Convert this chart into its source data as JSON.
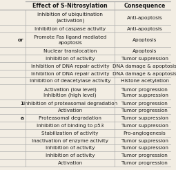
{
  "header": [
    "Effect of S-Nitrosylation",
    "Consequence"
  ],
  "rows": [
    [
      "Inhibition of ubiquitination\n(activation)",
      "Anti-apoptosis"
    ],
    [
      "Inhibition of caspase activity",
      "Anti-apoptosis"
    ],
    [
      "Promote Fas ligand mediated\napoptosis",
      "Apoptosis"
    ],
    [
      "Nuclear translocation",
      "Apoptosis"
    ],
    [
      "Inhibition of activity",
      "Tumor suppression"
    ],
    [
      "Inhibition of DNA repair activity",
      "DNA damage & apoptosis"
    ],
    [
      "Inhibition of DNA repair activity",
      "DNA damage & apoptosis"
    ],
    [
      "Inhibition of deacetylase activity",
      "Histone acetylation"
    ],
    [
      "Activation (low level)\nInhibition (high level)",
      "Tumor progression\nTumor suppression"
    ],
    [
      "Inhibition of proteasomal degradation",
      "Tumor progression"
    ],
    [
      "Activation",
      "Tumor progression"
    ],
    [
      "Proteasomal degradation",
      "Tumor suppression"
    ],
    [
      "Inhibition of binding to p53",
      "Tumor suppression"
    ],
    [
      "Stabilization of activity",
      "Pro-angiogenesis"
    ],
    [
      "Inactivation of enzyme activity",
      "Tumor suppression"
    ],
    [
      "Inhibition of activity",
      "Tumor suppression"
    ],
    [
      "Inhibition of activity",
      "Tumor progression"
    ],
    [
      "Activation",
      "Tumor progression"
    ]
  ],
  "left_col_partial": [
    "",
    "",
    "or",
    "",
    "",
    "",
    "",
    "",
    "",
    "1",
    "",
    "a",
    "",
    "",
    "",
    "",
    "",
    ""
  ],
  "bg_color": "#f2ede3",
  "line_color": "#aaaaaa",
  "text_color": "#1a1a1a",
  "font_size": 5.2,
  "header_font_size": 5.8,
  "fig_bg": "#ddd8cc"
}
